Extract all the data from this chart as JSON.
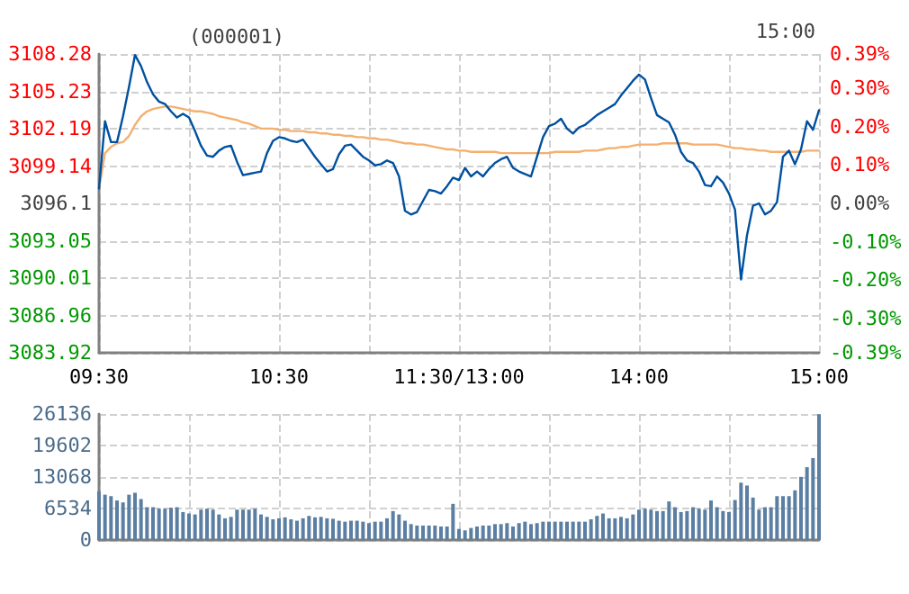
{
  "chart_data": [
    {
      "type": "line",
      "title": "(000001)",
      "annotations": [
        "15:00"
      ],
      "marker": "none",
      "line_style": "solid",
      "grid": true,
      "categories": [
        "09:30",
        null,
        null,
        null,
        null,
        null,
        null,
        null,
        null,
        null,
        null,
        null,
        null,
        null,
        null,
        null,
        null,
        null,
        null,
        null,
        null,
        null,
        null,
        null,
        null,
        null,
        null,
        null,
        null,
        null,
        "10:30",
        null,
        null,
        null,
        null,
        null,
        null,
        null,
        null,
        null,
        null,
        null,
        null,
        null,
        null,
        null,
        null,
        null,
        null,
        null,
        null,
        null,
        null,
        null,
        null,
        null,
        null,
        null,
        null,
        null,
        "11:30/13:00",
        null,
        null,
        null,
        null,
        null,
        null,
        null,
        null,
        null,
        null,
        null,
        null,
        null,
        null,
        null,
        null,
        null,
        null,
        null,
        null,
        null,
        null,
        null,
        null,
        null,
        null,
        null,
        null,
        null,
        "14:00",
        null,
        null,
        null,
        null,
        null,
        null,
        null,
        null,
        null,
        null,
        null,
        null,
        null,
        null,
        null,
        null,
        null,
        null,
        null,
        null,
        null,
        null,
        null,
        null,
        null,
        null,
        null,
        null,
        null,
        "15:00"
      ],
      "ylim": [
        3083.92,
        3108.28
      ],
      "yticks": [
        3083.92,
        3086.96,
        3090.01,
        3093.05,
        3096.1,
        3099.14,
        3102.19,
        3105.23,
        3108.28
      ],
      "y2lim": [
        -0.39,
        0.39
      ],
      "y2ticks": [
        {
          "value": -0.39,
          "label": "-0.39%"
        },
        {
          "value": -0.3,
          "label": "-0.30%"
        },
        {
          "value": -0.2,
          "label": "-0.20%"
        },
        {
          "value": -0.1,
          "label": "-0.10%"
        },
        {
          "value": 0,
          "label": "0.00%"
        },
        {
          "value": 0.1,
          "label": "0.10%"
        },
        {
          "value": 0.2,
          "label": "0.20%"
        },
        {
          "value": 0.3,
          "label": "0.30%"
        },
        {
          "value": 0.39,
          "label": "0.39%"
        }
      ],
      "series": [
        {
          "color": "#0050a0",
          "values": [
            3097.3,
            3102.8,
            3101.1,
            3101.1,
            3103.2,
            3105.6,
            3108.2,
            3107.3,
            3106.0,
            3105.0,
            3104.4,
            3104.2,
            3103.6,
            3103.1,
            3103.4,
            3103.1,
            3102.0,
            3100.8,
            3100.0,
            3099.9,
            3100.4,
            3100.7,
            3100.8,
            3099.5,
            3098.4,
            3098.5,
            3098.6,
            3098.7,
            3100.2,
            3101.2,
            3101.5,
            3101.4,
            3101.2,
            3101.1,
            3101.3,
            3100.6,
            3099.9,
            3099.3,
            3098.7,
            3098.9,
            3100.1,
            3100.8,
            3100.9,
            3100.4,
            3099.9,
            3099.6,
            3099.2,
            3099.3,
            3099.6,
            3099.4,
            3098.3,
            3095.5,
            3095.2,
            3095.4,
            3096.3,
            3097.2,
            3097.1,
            3096.9,
            3097.5,
            3098.2,
            3098.0,
            3099.0,
            3098.3,
            3098.7,
            3098.3,
            3098.9,
            3099.4,
            3099.7,
            3099.9,
            3099.0,
            3098.7,
            3098.5,
            3098.3,
            3099.9,
            3101.5,
            3102.4,
            3102.6,
            3103.0,
            3102.2,
            3101.8,
            3102.3,
            3102.5,
            3102.9,
            3103.3,
            3103.6,
            3103.9,
            3104.2,
            3104.9,
            3105.5,
            3106.1,
            3106.6,
            3106.2,
            3104.7,
            3103.3,
            3103.0,
            3102.7,
            3101.7,
            3100.3,
            3099.6,
            3099.4,
            3098.7,
            3097.6,
            3097.5,
            3098.3,
            3097.8,
            3096.9,
            3095.6,
            3089.9,
            3093.5,
            3095.9,
            3096.1,
            3095.2,
            3095.5,
            3096.2,
            3099.9,
            3100.4,
            3099.3,
            3100.5,
            3102.8,
            3102.1,
            3103.7
          ]
        },
        {
          "color": "#f4b070",
          "values": [
            3097.3,
            3100.2,
            3100.7,
            3101.0,
            3101.1,
            3101.6,
            3102.5,
            3103.2,
            3103.6,
            3103.8,
            3103.9,
            3104.0,
            3104.0,
            3103.9,
            3103.8,
            3103.7,
            3103.6,
            3103.6,
            3103.5,
            3103.4,
            3103.2,
            3103.1,
            3103.0,
            3102.9,
            3102.7,
            3102.6,
            3102.4,
            3102.2,
            3102.2,
            3102.2,
            3102.1,
            3102.1,
            3102.0,
            3102.0,
            3102.0,
            3101.9,
            3101.9,
            3101.8,
            3101.8,
            3101.7,
            3101.7,
            3101.6,
            3101.6,
            3101.5,
            3101.5,
            3101.4,
            3101.4,
            3101.3,
            3101.3,
            3101.2,
            3101.1,
            3101.0,
            3101.0,
            3100.9,
            3100.9,
            3100.8,
            3100.7,
            3100.6,
            3100.5,
            3100.5,
            3100.4,
            3100.4,
            3100.3,
            3100.3,
            3100.3,
            3100.3,
            3100.3,
            3100.2,
            3100.2,
            3100.2,
            3100.2,
            3100.2,
            3100.2,
            3100.2,
            3100.2,
            3100.2,
            3100.3,
            3100.3,
            3100.3,
            3100.3,
            3100.3,
            3100.4,
            3100.4,
            3100.4,
            3100.5,
            3100.6,
            3100.6,
            3100.7,
            3100.7,
            3100.8,
            3100.9,
            3100.9,
            3100.9,
            3100.9,
            3101.0,
            3101.0,
            3101.0,
            3101.0,
            3101.0,
            3100.9,
            3100.9,
            3100.9,
            3100.9,
            3100.9,
            3100.8,
            3100.7,
            3100.6,
            3100.6,
            3100.5,
            3100.5,
            3100.4,
            3100.4,
            3100.3,
            3100.3,
            3100.3,
            3100.3,
            3100.3,
            3100.3,
            3100.4,
            3100.4,
            3100.4
          ]
        }
      ]
    },
    {
      "type": "bar",
      "color": "#5b7fa3",
      "grid": true,
      "tick_labels": "y",
      "categories": [
        null,
        null,
        null,
        null,
        null,
        null,
        null,
        null,
        null,
        null,
        null,
        null,
        null,
        null,
        null,
        null,
        null,
        null,
        null,
        null,
        null,
        null,
        null,
        null,
        null,
        null,
        null,
        null,
        null,
        null,
        null,
        null,
        null,
        null,
        null,
        null,
        null,
        null,
        null,
        null,
        null,
        null,
        null,
        null,
        null,
        null,
        null,
        null,
        null,
        null,
        null,
        null,
        null,
        null,
        null,
        null,
        null,
        null,
        null,
        null,
        null,
        null,
        null,
        null,
        null,
        null,
        null,
        null,
        null,
        null,
        null,
        null,
        null,
        null,
        null,
        null,
        null,
        null,
        null,
        null,
        null,
        null,
        null,
        null,
        null,
        null,
        null,
        null,
        null,
        null,
        null,
        null,
        null,
        null,
        null,
        null,
        null,
        null,
        null,
        null,
        null,
        null,
        null,
        null,
        null,
        null,
        null,
        null,
        null,
        null,
        null,
        null,
        null,
        null,
        null,
        null,
        null,
        null,
        null,
        null,
        null
      ],
      "ylim": [
        0,
        26136
      ],
      "yticks": [
        0,
        6534,
        13068,
        19602,
        26136
      ],
      "values": [
        10100,
        9400,
        9100,
        8200,
        7800,
        9400,
        9800,
        8500,
        6800,
        6800,
        6500,
        6500,
        6700,
        6800,
        5800,
        5500,
        5300,
        6300,
        6500,
        6300,
        5300,
        4500,
        4800,
        6300,
        6300,
        6300,
        6500,
        5300,
        4800,
        4300,
        4500,
        4700,
        4300,
        4000,
        4500,
        5000,
        4700,
        4800,
        4500,
        4400,
        4000,
        3800,
        4000,
        4000,
        3800,
        3500,
        3800,
        3800,
        4500,
        6000,
        5300,
        4000,
        3300,
        3000,
        3000,
        3000,
        3000,
        2800,
        2800,
        7500,
        2300,
        2000,
        2500,
        2800,
        3000,
        3000,
        3300,
        3300,
        3500,
        2800,
        3500,
        3800,
        3300,
        3500,
        3800,
        3800,
        3800,
        3800,
        3800,
        3800,
        3800,
        3800,
        4300,
        5000,
        5500,
        4500,
        4500,
        4800,
        4500,
        5300,
        6300,
        6500,
        6300,
        6000,
        6000,
        8000,
        6800,
        5800,
        6000,
        6800,
        6500,
        6300,
        8200,
        6800,
        6000,
        5800,
        8300,
        11900,
        11300,
        8800,
        6300,
        6800,
        6800,
        9100,
        9100,
        9100,
        10300,
        13100,
        15100,
        17000,
        26100
      ]
    }
  ]
}
